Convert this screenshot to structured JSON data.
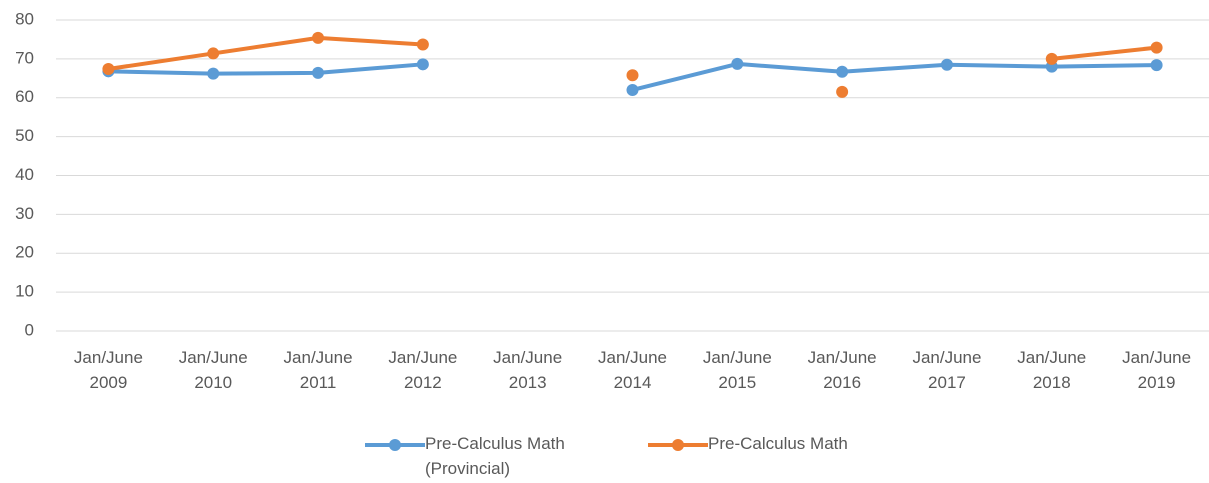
{
  "chart_data": {
    "type": "line",
    "categories": [
      "Jan/June 2009",
      "Jan/June 2010",
      "Jan/June 2011",
      "Jan/June 2012",
      "Jan/June 2013",
      "Jan/June 2014",
      "Jan/June 2015",
      "Jan/June 2016",
      "Jan/June 2017",
      "Jan/June 2018",
      "Jan/June 2019"
    ],
    "series": [
      {
        "name": "Pre-Calculus Math (Provincial)",
        "color": "#5b9bd5",
        "values": [
          66.8,
          66.2,
          66.4,
          68.6,
          null,
          62.0,
          68.7,
          66.7,
          68.5,
          68.0,
          68.4
        ]
      },
      {
        "name": "Pre-Calculus Math",
        "color": "#ed7d31",
        "values": [
          67.4,
          71.4,
          75.4,
          73.7,
          null,
          65.8,
          null,
          61.5,
          null,
          70.0,
          72.9
        ]
      }
    ],
    "ylim": [
      0,
      80
    ],
    "yticks": [
      0,
      10,
      20,
      30,
      40,
      50,
      60,
      70,
      80
    ],
    "grid": true,
    "legend": "bottom"
  }
}
